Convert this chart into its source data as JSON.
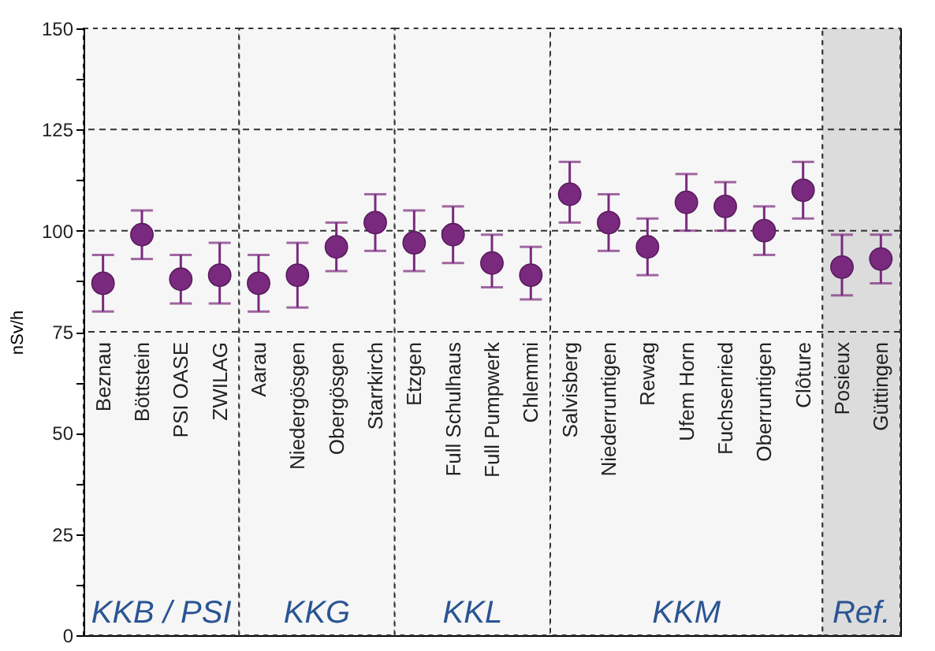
{
  "chart_data": {
    "type": "scatter",
    "ylabel": "nSv/h",
    "categories": [
      "Beznau",
      "Böttstein",
      "PSI OASE",
      "ZWILAG",
      "Aarau",
      "Niedergösgen",
      "Obergösgen",
      "Starrkirch",
      "Etzgen",
      "Full Schulhaus",
      "Full Pumpwerk",
      "Chlemmi",
      "Salvisberg",
      "Niederruntigen",
      "Rewag",
      "Ufem Horn",
      "Fuchsenried",
      "Oberruntigen",
      "Clôture",
      "Posieux",
      "Güttingen"
    ],
    "series": [
      {
        "color": "#7a2a7e",
        "values": [
          87,
          99,
          88,
          89,
          87,
          89,
          96,
          102,
          97,
          99,
          92,
          89,
          109,
          102,
          96,
          107,
          106,
          100,
          110,
          91,
          93
        ],
        "errors": [
          [
            80,
            94
          ],
          [
            93,
            105
          ],
          [
            82,
            94
          ],
          [
            82,
            97
          ],
          [
            80,
            94
          ],
          [
            81,
            97
          ],
          [
            90,
            102
          ],
          [
            95,
            109
          ],
          [
            90,
            105
          ],
          [
            92,
            106
          ],
          [
            86,
            99
          ],
          [
            83,
            96
          ],
          [
            102,
            117
          ],
          [
            95,
            109
          ],
          [
            89,
            103
          ],
          [
            100,
            114
          ],
          [
            100,
            112
          ],
          [
            94,
            106
          ],
          [
            103,
            117
          ],
          [
            84,
            99
          ],
          [
            87,
            99
          ]
        ]
      }
    ],
    "marker": "circle",
    "ylim": [
      0,
      150
    ],
    "yticks": [
      0,
      {
        "value": 12.5,
        "label": null
      },
      25,
      {
        "value": 37.5,
        "label": null
      },
      50,
      {
        "value": 62.5,
        "label": null
      },
      75,
      {
        "value": 87.5,
        "label": null
      },
      100,
      {
        "value": 112.5,
        "label": null
      },
      125,
      {
        "value": 137.5,
        "label": null
      },
      150
    ],
    "ref_lines": [
      {
        "axis": "y",
        "value": 75,
        "line_style": "dashed"
      },
      {
        "axis": "y",
        "value": 100,
        "line_style": "dashed"
      },
      {
        "axis": "y",
        "value": 125,
        "line_style": "dashed"
      }
    ],
    "bands": [
      {
        "axis": "x",
        "from": "Beznau",
        "to": "ZWILAG",
        "label": "KKB / PSI",
        "color": "#f6f6f6"
      },
      {
        "axis": "x",
        "from": "Aarau",
        "to": "Starrkirch",
        "label": "KKG",
        "color": "#f6f6f6"
      },
      {
        "axis": "x",
        "from": "Etzgen",
        "to": "Chlemmi",
        "label": "KKL",
        "color": "#f6f6f6"
      },
      {
        "axis": "x",
        "from": "Salvisberg",
        "to": "Clôture",
        "label": "KKM",
        "color": "#f6f6f6"
      },
      {
        "axis": "x",
        "from": "Posieux",
        "to": "Güttingen",
        "label": "Ref.",
        "color": "#dcdcdc"
      }
    ],
    "grid": false
  }
}
